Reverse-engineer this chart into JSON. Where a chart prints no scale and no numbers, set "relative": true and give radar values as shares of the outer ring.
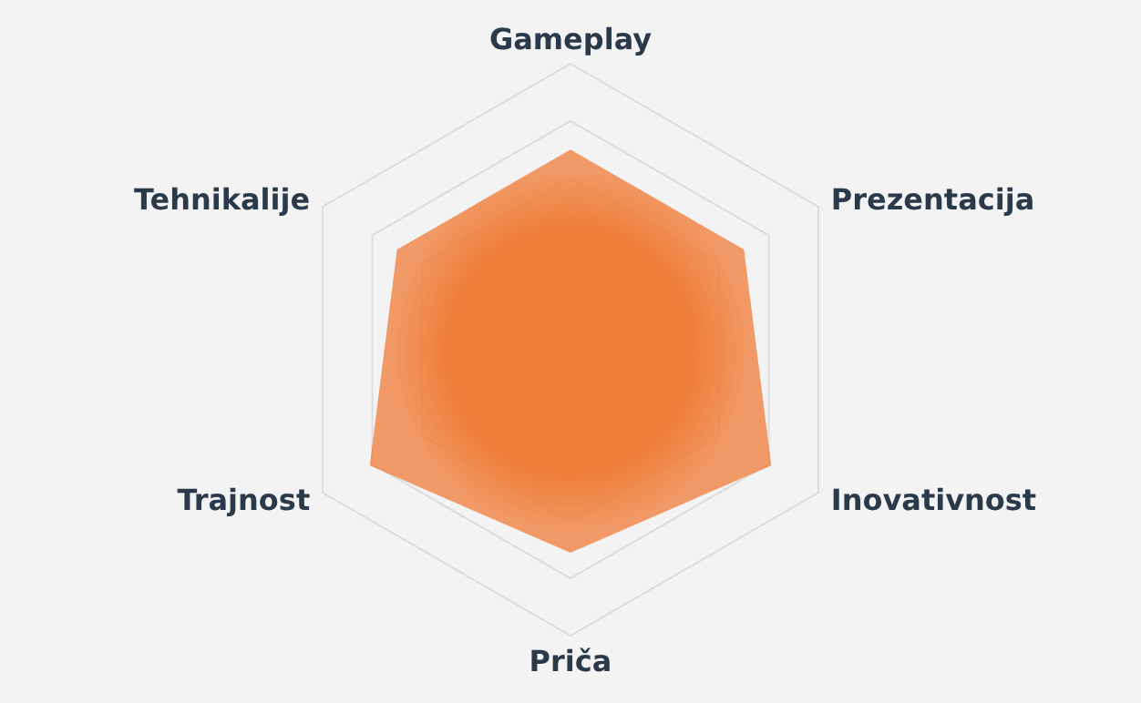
{
  "chart_data": {
    "type": "radar",
    "relative": true,
    "grid": true,
    "categories": [
      "Gameplay",
      "Prezentacija",
      "Inovativnost",
      "Priča",
      "Trajnost",
      "Tehnikalije"
    ],
    "series": [
      {
        "color": "#f07c38",
        "values": [
          0.7,
          0.7,
          0.81,
          0.71,
          0.81,
          0.7
        ]
      }
    ]
  }
}
